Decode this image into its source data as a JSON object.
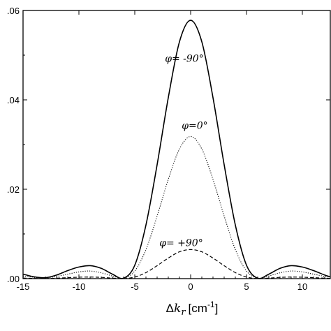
{
  "chart_data": {
    "type": "line",
    "title": "",
    "xlabel_parts": {
      "delta": "Δ",
      "k": "k",
      "sub": "r",
      "unit": "[cm",
      "exp": "-1",
      "close": "]"
    },
    "ylabel": "",
    "xlim": [
      -15,
      12.5
    ],
    "ylim": [
      0,
      0.06
    ],
    "x_ticks": [
      -15,
      -10,
      -5,
      0,
      5,
      10
    ],
    "x_tick_labels": [
      "-15",
      "-10",
      "-5",
      "0",
      "5",
      "10"
    ],
    "y_ticks": [
      0,
      0.02,
      0.04,
      0.06
    ],
    "y_tick_labels": [
      ".00",
      ".02",
      ".04",
      ".06"
    ],
    "grid": false,
    "legend": "none",
    "series": [
      {
        "name": "φ= -90°",
        "style": "solid",
        "x": [
          -15,
          -14,
          -13,
          -12,
          -11,
          -10,
          -9,
          -8,
          -7,
          -6,
          -5,
          -4,
          -3,
          -2,
          -1,
          0,
          1,
          2,
          3,
          4,
          5,
          6,
          7,
          8,
          9,
          10,
          11,
          12,
          12.5
        ],
        "y": [
          0.001,
          0.0004,
          0.0002,
          0.0008,
          0.0018,
          0.0026,
          0.0029,
          0.0023,
          0.001,
          0.0001,
          0.003,
          0.012,
          0.0255,
          0.0405,
          0.053,
          0.0578,
          0.053,
          0.0405,
          0.0255,
          0.012,
          0.003,
          0.0001,
          0.001,
          0.0023,
          0.0029,
          0.0026,
          0.0018,
          0.0008,
          0.0004
        ]
      },
      {
        "name": "φ=0°",
        "style": "dotted",
        "x": [
          -15,
          -14,
          -13,
          -12,
          -11,
          -10,
          -9,
          -8,
          -7,
          -6,
          -5,
          -4,
          -3,
          -2,
          -1,
          0,
          1,
          2,
          3,
          4,
          5,
          6,
          7,
          8,
          9,
          10,
          11,
          12,
          12.5
        ],
        "y": [
          0.0006,
          0.0003,
          0.0001,
          0.0005,
          0.001,
          0.0015,
          0.0017,
          0.0013,
          0.0006,
          0.0001,
          0.0017,
          0.0065,
          0.014,
          0.0222,
          0.029,
          0.0318,
          0.029,
          0.0222,
          0.014,
          0.0065,
          0.0017,
          0.0001,
          0.0006,
          0.0013,
          0.0017,
          0.0015,
          0.001,
          0.0005,
          0.0003
        ]
      },
      {
        "name": "φ= +90°",
        "style": "dashed",
        "x": [
          -15,
          -14,
          -13,
          -12,
          -11,
          -10,
          -9,
          -8,
          -7,
          -6,
          -5,
          -4,
          -3,
          -2,
          -1,
          0,
          1,
          2,
          3,
          4,
          5,
          6,
          7,
          8,
          9,
          10,
          11,
          12,
          12.5
        ],
        "y": [
          0.00012,
          5e-05,
          2e-05,
          0.0001,
          0.00022,
          0.00032,
          0.00035,
          0.00028,
          0.00012,
          1e-05,
          0.00035,
          0.00135,
          0.0029,
          0.0046,
          0.006,
          0.0065,
          0.006,
          0.0046,
          0.0029,
          0.00135,
          0.00035,
          1e-05,
          0.00012,
          0.00028,
          0.00035,
          0.00032,
          0.00022,
          0.0001,
          5e-05
        ]
      }
    ],
    "annotations": [
      {
        "text": "φ= -90°",
        "x": -2.3,
        "y": 0.0485,
        "series": 0
      },
      {
        "text": "φ=0°",
        "x": -0.8,
        "y": 0.0335,
        "series": 1
      },
      {
        "text": "φ= +90°",
        "x": -2.8,
        "y": 0.0073,
        "series": 2
      }
    ]
  }
}
